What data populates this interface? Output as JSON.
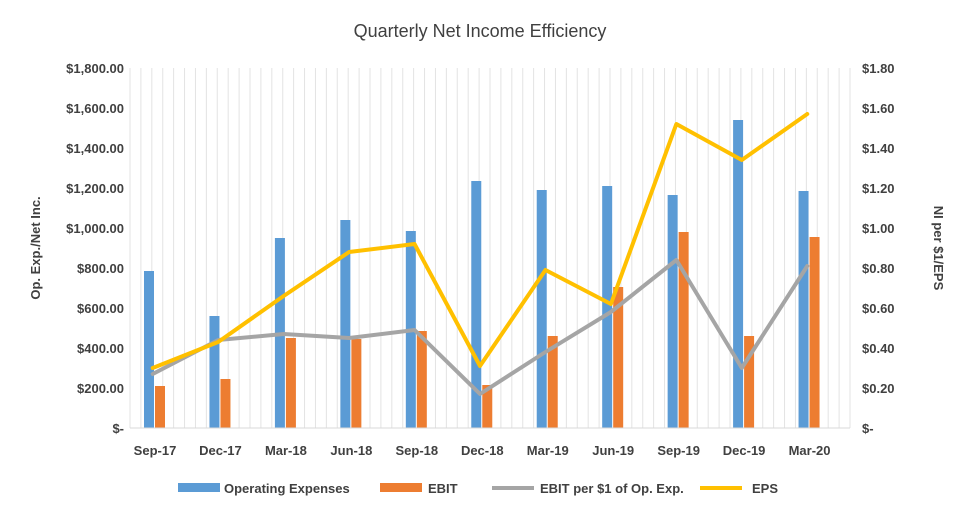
{
  "chart_data": {
    "type": "bar",
    "title": "Quarterly Net Income Efficiency",
    "categories": [
      "Sep-17",
      "Dec-17",
      "Mar-18",
      "Jun-18",
      "Sep-18",
      "Dec-18",
      "Mar-19",
      "Jun-19",
      "Sep-19",
      "Dec-19",
      "Mar-20"
    ],
    "ylabel": "Op. Exp./Net Inc.",
    "y2label": "NI per $1/EPS",
    "ylim": [
      0,
      1800
    ],
    "y2lim": [
      0,
      1.8
    ],
    "yticks": [
      "$-",
      "$200.00",
      "$400.00",
      "$600.00",
      "$800.00",
      "$1,000.00",
      "$1,200.00",
      "$1,400.00",
      "$1,600.00",
      "$1,800.00"
    ],
    "y2ticks": [
      "$-",
      "$0.20",
      "$0.40",
      "$0.60",
      "$0.80",
      "$1.00",
      "$1.20",
      "$1.40",
      "$1.60",
      "$1.80"
    ],
    "grid": "vertical",
    "legend_position": "bottom",
    "bar_series": [
      {
        "name": "Operating Expenses",
        "color": "#5B9BD5",
        "values": [
          785,
          560,
          950,
          1040,
          985,
          1235,
          1190,
          1210,
          1165,
          1540,
          1185
        ]
      },
      {
        "name": "EBIT",
        "color": "#ED7D31",
        "values": [
          210,
          245,
          450,
          445,
          485,
          215,
          460,
          705,
          980,
          460,
          955
        ]
      }
    ],
    "line_series": [
      {
        "name": "EBIT per $1 of Op. Exp.",
        "color": "#A5A5A5",
        "axis": "right",
        "values": [
          0.27,
          0.44,
          0.47,
          0.45,
          0.49,
          0.17,
          0.38,
          0.58,
          0.84,
          0.3,
          0.81
        ]
      },
      {
        "name": "EPS",
        "color": "#FFC000",
        "axis": "right",
        "values": [
          0.3,
          0.43,
          0.66,
          0.88,
          0.92,
          0.31,
          0.79,
          0.62,
          1.52,
          1.34,
          1.57
        ]
      }
    ]
  }
}
